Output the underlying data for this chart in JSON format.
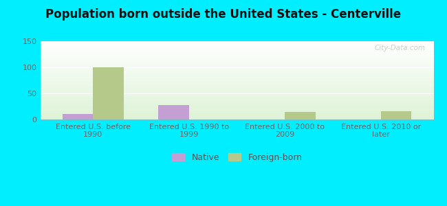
{
  "title": "Population born outside the United States - Centerville",
  "categories": [
    "Entered U.S. before\n1990",
    "Entered U.S. 1990 to\n1999",
    "Entered U.S. 2000 to\n2009",
    "Entered U.S. 2010 or\nlater"
  ],
  "native_values": [
    10,
    28,
    0,
    0
  ],
  "foreign_values": [
    100,
    0,
    15,
    16
  ],
  "native_color": "#c49fd4",
  "foreign_color": "#b5c98a",
  "background_color": "#00eeff",
  "ylim": [
    0,
    150
  ],
  "yticks": [
    0,
    50,
    100,
    150
  ],
  "bar_width": 0.32,
  "legend_native": "Native",
  "legend_foreign": "Foreign-born",
  "watermark": "City-Data.com",
  "title_fontsize": 12,
  "tick_fontsize": 8,
  "legend_fontsize": 9
}
